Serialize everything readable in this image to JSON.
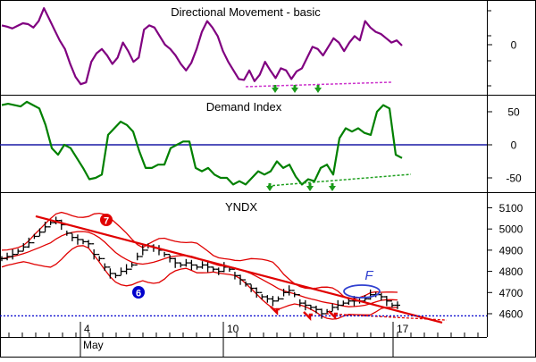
{
  "colors": {
    "frame": "#000000",
    "dm_line": "#800080",
    "dm_trend": "#cc33cc",
    "di_line": "#008000",
    "di_zero": "#1a1aa6",
    "di_trend": "#20a020",
    "price_bars": "#000000",
    "bands": "#e00000",
    "trend_line": "#e00000",
    "support_line": "#0000cc",
    "arrows_green": "#1a9a1a",
    "arrows_red": "#e00000",
    "f_ellipse": "#3040d0"
  },
  "chart_data": [
    {
      "type": "line",
      "title": "Directional Movement - basic",
      "y_ticks": [
        "0"
      ],
      "ylim": [
        -100,
        100
      ],
      "grid": false,
      "series": [
        {
          "values": [
            45,
            42,
            38,
            44,
            50,
            48,
            40,
            55,
            85,
            60,
            35,
            10,
            -10,
            -45,
            -75,
            -92,
            -88,
            -40,
            -20,
            -10,
            -25,
            -45,
            -30,
            5,
            -15,
            -40,
            -30,
            35,
            45,
            40,
            20,
            0,
            -10,
            -25,
            -45,
            -60,
            -42,
            -10,
            30,
            55,
            40,
            20,
            -15,
            -40,
            -60,
            -80,
            -82,
            -60,
            -85,
            -70,
            -40,
            -60,
            -78,
            -55,
            -60,
            -80,
            -62,
            -55,
            -30,
            -5,
            -10,
            -25,
            -5,
            15,
            5,
            -15,
            5,
            20,
            10,
            55,
            40,
            30,
            25,
            15,
            5,
            10,
            -2
          ]
        }
      ],
      "annotations": [
        "dashed support trend line",
        "green up-arrows at three lows"
      ]
    },
    {
      "type": "line",
      "title": "Demand Index",
      "y_ticks": [
        "50",
        "0",
        "-50"
      ],
      "ylim": [
        -75,
        75
      ],
      "grid": false,
      "zero_line": 0,
      "series": [
        {
          "values": [
            60,
            62,
            60,
            58,
            65,
            60,
            55,
            30,
            -5,
            -15,
            0,
            -5,
            -20,
            -35,
            -52,
            -50,
            -45,
            15,
            25,
            35,
            30,
            20,
            -10,
            -35,
            -35,
            -30,
            -30,
            -5,
            0,
            5,
            5,
            -35,
            -40,
            -35,
            -45,
            -50,
            -50,
            -60,
            -55,
            -60,
            -50,
            -40,
            -45,
            -40,
            -25,
            -35,
            -30,
            -48,
            -60,
            -52,
            -55,
            -35,
            -30,
            -45,
            10,
            25,
            20,
            25,
            18,
            15,
            50,
            60,
            55,
            -15,
            -20
          ]
        }
      ],
      "annotations": [
        "dashed rising trend line",
        "green up-arrows at three lows"
      ]
    },
    {
      "type": "candlestick",
      "title": "YNDX",
      "y_ticks": [
        "5100",
        "5000",
        "4900",
        "4800",
        "4700",
        "4600"
      ],
      "ylim": [
        4540,
        5130
      ],
      "x_tick_labels": [
        "4",
        "10",
        "17"
      ],
      "x_sublabel": "May",
      "grid": false,
      "price_series": [
        4860,
        4870,
        4880,
        4895,
        4915,
        4935,
        4965,
        4985,
        5010,
        5030,
        5040,
        5020,
        4980,
        4960,
        4950,
        4940,
        4930,
        4880,
        4860,
        4820,
        4790,
        4780,
        4800,
        4810,
        4830,
        4870,
        4900,
        4920,
        4910,
        4900,
        4880,
        4860,
        4840,
        4830,
        4840,
        4830,
        4820,
        4830,
        4820,
        4810,
        4800,
        4820,
        4810,
        4780,
        4760,
        4740,
        4720,
        4700,
        4680,
        4670,
        4660,
        4670,
        4700,
        4710,
        4690,
        4650,
        4640,
        4630,
        4620,
        4600,
        4610,
        4630,
        4640,
        4650,
        4660,
        4660,
        4660,
        4670,
        4690,
        4690,
        4680,
        4660,
        4640,
        4640
      ],
      "bollinger_periods": 20,
      "bollinger_width": 2,
      "support_level": 4590,
      "trend_line": {
        "start": [
          5,
          5060
        ],
        "end": [
          90,
          4560
        ]
      },
      "annotations": [
        {
          "label": "7",
          "kind": "red circle marker"
        },
        {
          "label": "6",
          "kind": "blue circle marker"
        },
        {
          "label": "F",
          "kind": "blue italic text with ellipse"
        }
      ]
    }
  ]
}
